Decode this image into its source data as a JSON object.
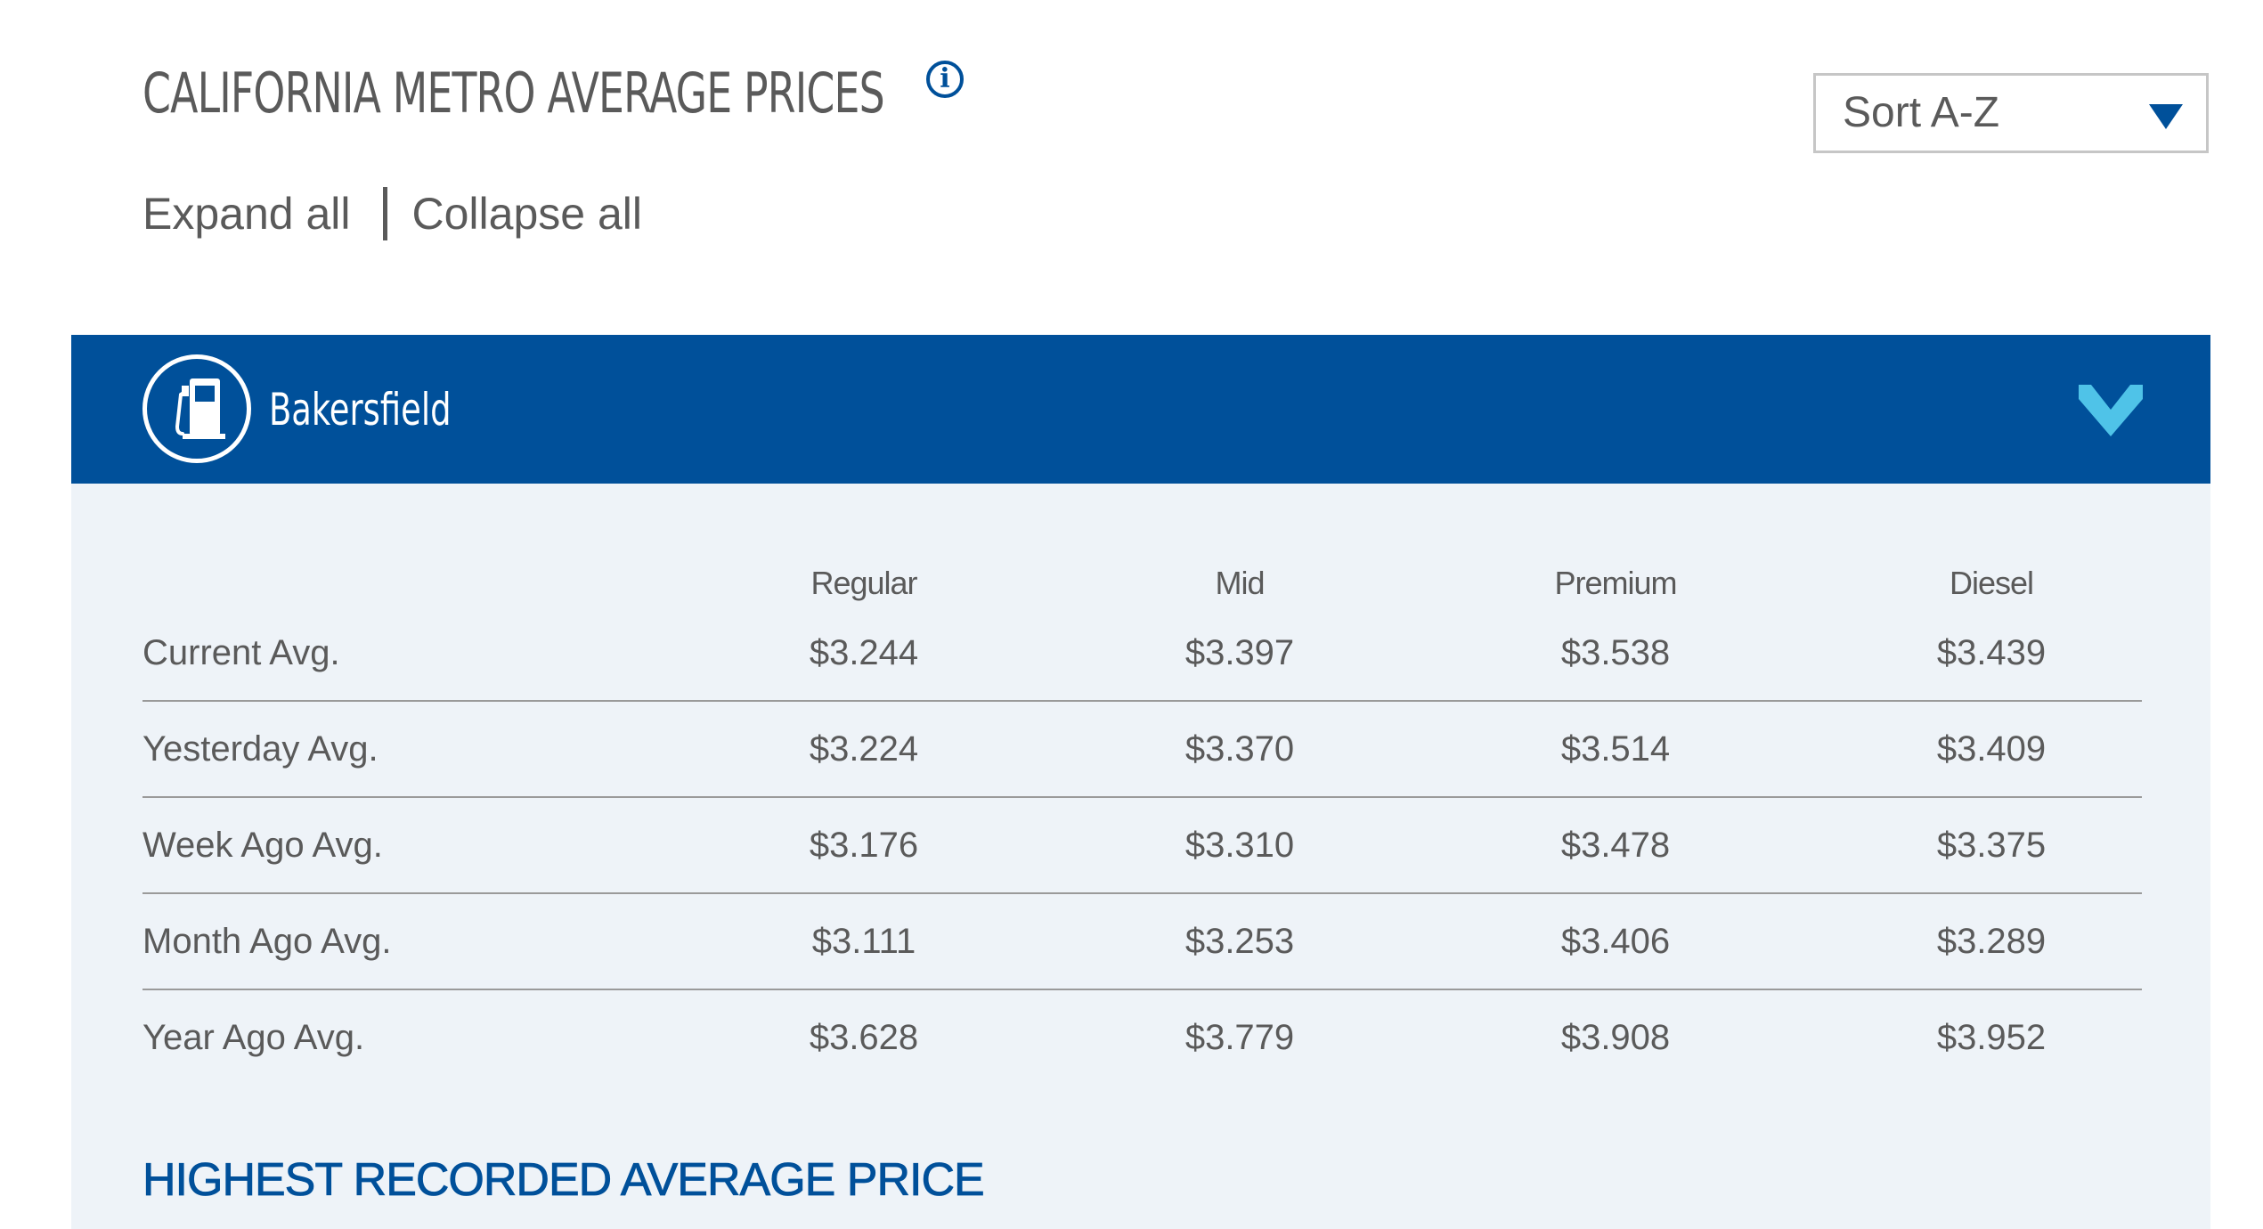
{
  "header": {
    "title": "CALIFORNIA METRO AVERAGE PRICES",
    "info_icon": "info-icon",
    "sort": {
      "selected": "Sort A-Z",
      "arrow_icon": "triangle-down-icon"
    },
    "expand_all": "Expand all",
    "collapse_all": "Collapse all"
  },
  "colors": {
    "brand_blue": "#00509a",
    "chevron_cyan": "#4fc3e8",
    "panel_background": "#eef3f8",
    "text_gray": "#5a5a5a"
  },
  "metro": {
    "name": "Bakersfield",
    "icon": "gas-pump-icon",
    "toggle_icon": "chevron-down-icon",
    "columns": [
      "Regular",
      "Mid",
      "Premium",
      "Diesel"
    ],
    "rows": [
      {
        "label": "Current Avg.",
        "values": [
          "$3.244",
          "$3.397",
          "$3.538",
          "$3.439"
        ]
      },
      {
        "label": "Yesterday Avg.",
        "values": [
          "$3.224",
          "$3.370",
          "$3.514",
          "$3.409"
        ]
      },
      {
        "label": "Week Ago Avg.",
        "values": [
          "$3.176",
          "$3.310",
          "$3.478",
          "$3.375"
        ]
      },
      {
        "label": "Month Ago Avg.",
        "values": [
          "$3.111",
          "$3.253",
          "$3.406",
          "$3.289"
        ]
      },
      {
        "label": "Year Ago Avg.",
        "values": [
          "$3.628",
          "$3.779",
          "$3.908",
          "$3.952"
        ]
      }
    ],
    "highest_heading": "HIGHEST RECORDED AVERAGE PRICE"
  }
}
